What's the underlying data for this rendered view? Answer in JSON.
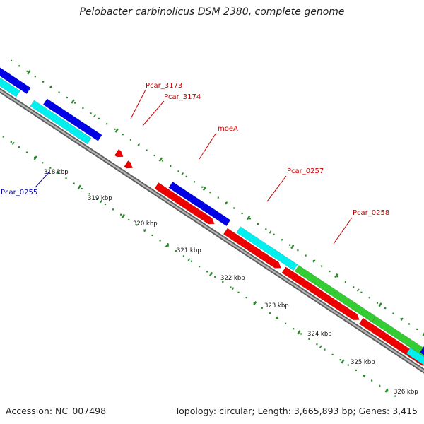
{
  "title": "Pelobacter carbinolicus DSM 2380, complete genome",
  "footer": {
    "accession": "Accession: NC_007498",
    "summary": "Topology: circular; Length: 3,665,893 bp; Genes: 3,415"
  },
  "ticks": [
    "318 kbp",
    "319 kbp",
    "320 kbp",
    "321 kbp",
    "322 kbp",
    "323 kbp",
    "324 kbp",
    "325 kbp",
    "326 kbp"
  ],
  "gene_labels": [
    {
      "text": "Pcar_3173",
      "color": "#cc0000"
    },
    {
      "text": "Pcar_3174",
      "color": "#cc0000"
    },
    {
      "text": "moeA",
      "color": "#cc0000"
    },
    {
      "text": "Pcar_0257",
      "color": "#cc0000"
    },
    {
      "text": "Pcar_0258",
      "color": "#cc0000"
    },
    {
      "text": "Pcar_0255",
      "color": "#0000aa"
    }
  ],
  "colors": {
    "backbone": "#808080",
    "blue": "#0000e6",
    "cyan": "#00f0f0",
    "red": "#ee0000",
    "green": "#33cc33",
    "tick": "#2a8a2a"
  }
}
